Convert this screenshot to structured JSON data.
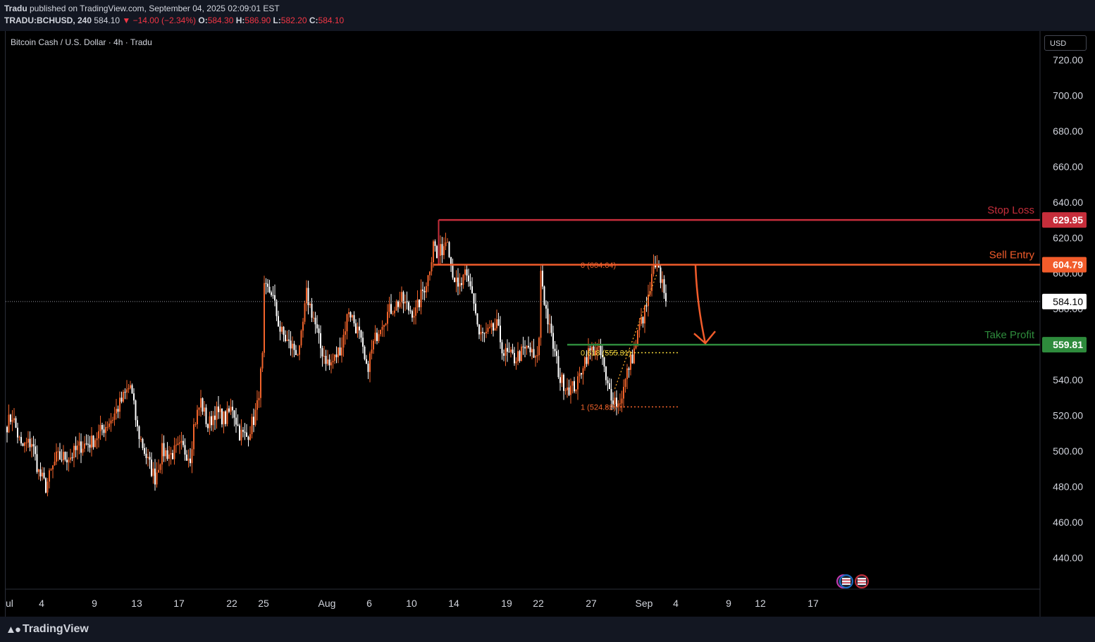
{
  "header": {
    "publisher": "Tradu",
    "published_text": " published on TradingView.com, September 04, 2025 02:09:01 EST",
    "symbol": "TRADU:BCHUSD, 240",
    "last": "584.10",
    "change": "▼ −14.00 (−2.34%)",
    "o_label": "O:",
    "o_value": "584.30",
    "h_label": "H:",
    "h_value": "586.90",
    "l_label": "L:",
    "l_value": "582.20",
    "c_label": "C:",
    "c_value": "584.10"
  },
  "chart_title": "Bitcoin Cash / U.S. Dollar · 4h · Tradu",
  "currency": "USD",
  "brand": "TradingView",
  "colors": {
    "up": "#f2642b",
    "down": "#ffffff",
    "stop": "#c62e3b",
    "entry": "#f25c2b",
    "tp": "#2e8b3c",
    "fib": "#f7a52b"
  },
  "chart_data": {
    "type": "candlestick",
    "timeframe": "4h",
    "ylim": [
      420,
      732
    ],
    "y_ticks": [
      440,
      460,
      480,
      500,
      520,
      540,
      560,
      580,
      600,
      620,
      640,
      660,
      680,
      700,
      720
    ],
    "x_ticks": [
      {
        "label": "ul",
        "bar": 0
      },
      {
        "label": "4",
        "bar": 18
      },
      {
        "label": "9",
        "bar": 48
      },
      {
        "label": "13",
        "bar": 72
      },
      {
        "label": "17",
        "bar": 96
      },
      {
        "label": "22",
        "bar": 126
      },
      {
        "label": "25",
        "bar": 144
      },
      {
        "label": "Aug",
        "bar": 180
      },
      {
        "label": "6",
        "bar": 204
      },
      {
        "label": "10",
        "bar": 228
      },
      {
        "label": "14",
        "bar": 252
      },
      {
        "label": "19",
        "bar": 282
      },
      {
        "label": "22",
        "bar": 300
      },
      {
        "label": "27",
        "bar": 330
      },
      {
        "label": "Sep",
        "bar": 360
      },
      {
        "label": "4",
        "bar": 378
      },
      {
        "label": "9",
        "bar": 408
      },
      {
        "label": "12",
        "bar": 426
      },
      {
        "label": "17",
        "bar": 456
      }
    ],
    "current_price": 584.1,
    "levels": [
      {
        "name": "Stop Loss",
        "value": 629.95,
        "label": "629.95",
        "start_bar": 245
      },
      {
        "name": "Sell Entry",
        "value": 604.79,
        "label": "604.79",
        "start_bar": 242
      },
      {
        "name": "Take Profit",
        "value": 559.81,
        "label": "559.81",
        "start_bar": 318
      }
    ],
    "fib": [
      {
        "label": "0 (604.64)",
        "value": 604.64
      },
      {
        "label": "0.618 (555.31)",
        "value": 555.31
      },
      {
        "label": "1 (524.82)",
        "value": 524.82
      }
    ],
    "arrow": {
      "from_bar": 390,
      "from": 604.8,
      "to_bar": 394,
      "to": 559.8
    },
    "anchors": [
      [
        0,
        515
      ],
      [
        3,
        520
      ],
      [
        8,
        502
      ],
      [
        14,
        505
      ],
      [
        18,
        488
      ],
      [
        22,
        480
      ],
      [
        28,
        496
      ],
      [
        36,
        497
      ],
      [
        42,
        503
      ],
      [
        48,
        505
      ],
      [
        54,
        512
      ],
      [
        60,
        519
      ],
      [
        66,
        530
      ],
      [
        70,
        537
      ],
      [
        74,
        512
      ],
      [
        80,
        494
      ],
      [
        84,
        485
      ],
      [
        88,
        500
      ],
      [
        93,
        498
      ],
      [
        99,
        502
      ],
      [
        104,
        497
      ],
      [
        106,
        514
      ],
      [
        110,
        528
      ],
      [
        114,
        514
      ],
      [
        118,
        522
      ],
      [
        124,
        518
      ],
      [
        128,
        525
      ],
      [
        132,
        510
      ],
      [
        136,
        508
      ],
      [
        140,
        518
      ],
      [
        142,
        525
      ],
      [
        145,
        552
      ],
      [
        146,
        590
      ],
      [
        150,
        590
      ],
      [
        155,
        568
      ],
      [
        160,
        560
      ],
      [
        166,
        555
      ],
      [
        170,
        588
      ],
      [
        174,
        575
      ],
      [
        178,
        558
      ],
      [
        183,
        548
      ],
      [
        186,
        552
      ],
      [
        190,
        560
      ],
      [
        194,
        580
      ],
      [
        200,
        565
      ],
      [
        204,
        545
      ],
      [
        208,
        560
      ],
      [
        212,
        572
      ],
      [
        218,
        580
      ],
      [
        224,
        585
      ],
      [
        228,
        580
      ],
      [
        232,
        578
      ],
      [
        236,
        590
      ],
      [
        239,
        598
      ],
      [
        241,
        610
      ],
      [
        242,
        620
      ],
      [
        244,
        608
      ],
      [
        248,
        616
      ],
      [
        250,
        622
      ],
      [
        252,
        605
      ],
      [
        256,
        590
      ],
      [
        260,
        598
      ],
      [
        264,
        590
      ],
      [
        268,
        565
      ],
      [
        272,
        565
      ],
      [
        278,
        570
      ],
      [
        282,
        555
      ],
      [
        288,
        552
      ],
      [
        292,
        555
      ],
      [
        296,
        558
      ],
      [
        300,
        550
      ],
      [
        302,
        562
      ],
      [
        303,
        602
      ],
      [
        305,
        585
      ],
      [
        308,
        568
      ],
      [
        312,
        550
      ],
      [
        314,
        540
      ],
      [
        320,
        535
      ],
      [
        324,
        538
      ],
      [
        327,
        550
      ],
      [
        330,
        555
      ],
      [
        334,
        558
      ],
      [
        338,
        552
      ],
      [
        340,
        538
      ],
      [
        343,
        532
      ],
      [
        347,
        526
      ],
      [
        350,
        535
      ],
      [
        353,
        548
      ],
      [
        356,
        556
      ],
      [
        359,
        570
      ],
      [
        362,
        578
      ],
      [
        364,
        585
      ],
      [
        367,
        602
      ],
      [
        370,
        600
      ],
      [
        373,
        592
      ],
      [
        374,
        584.1
      ]
    ]
  }
}
